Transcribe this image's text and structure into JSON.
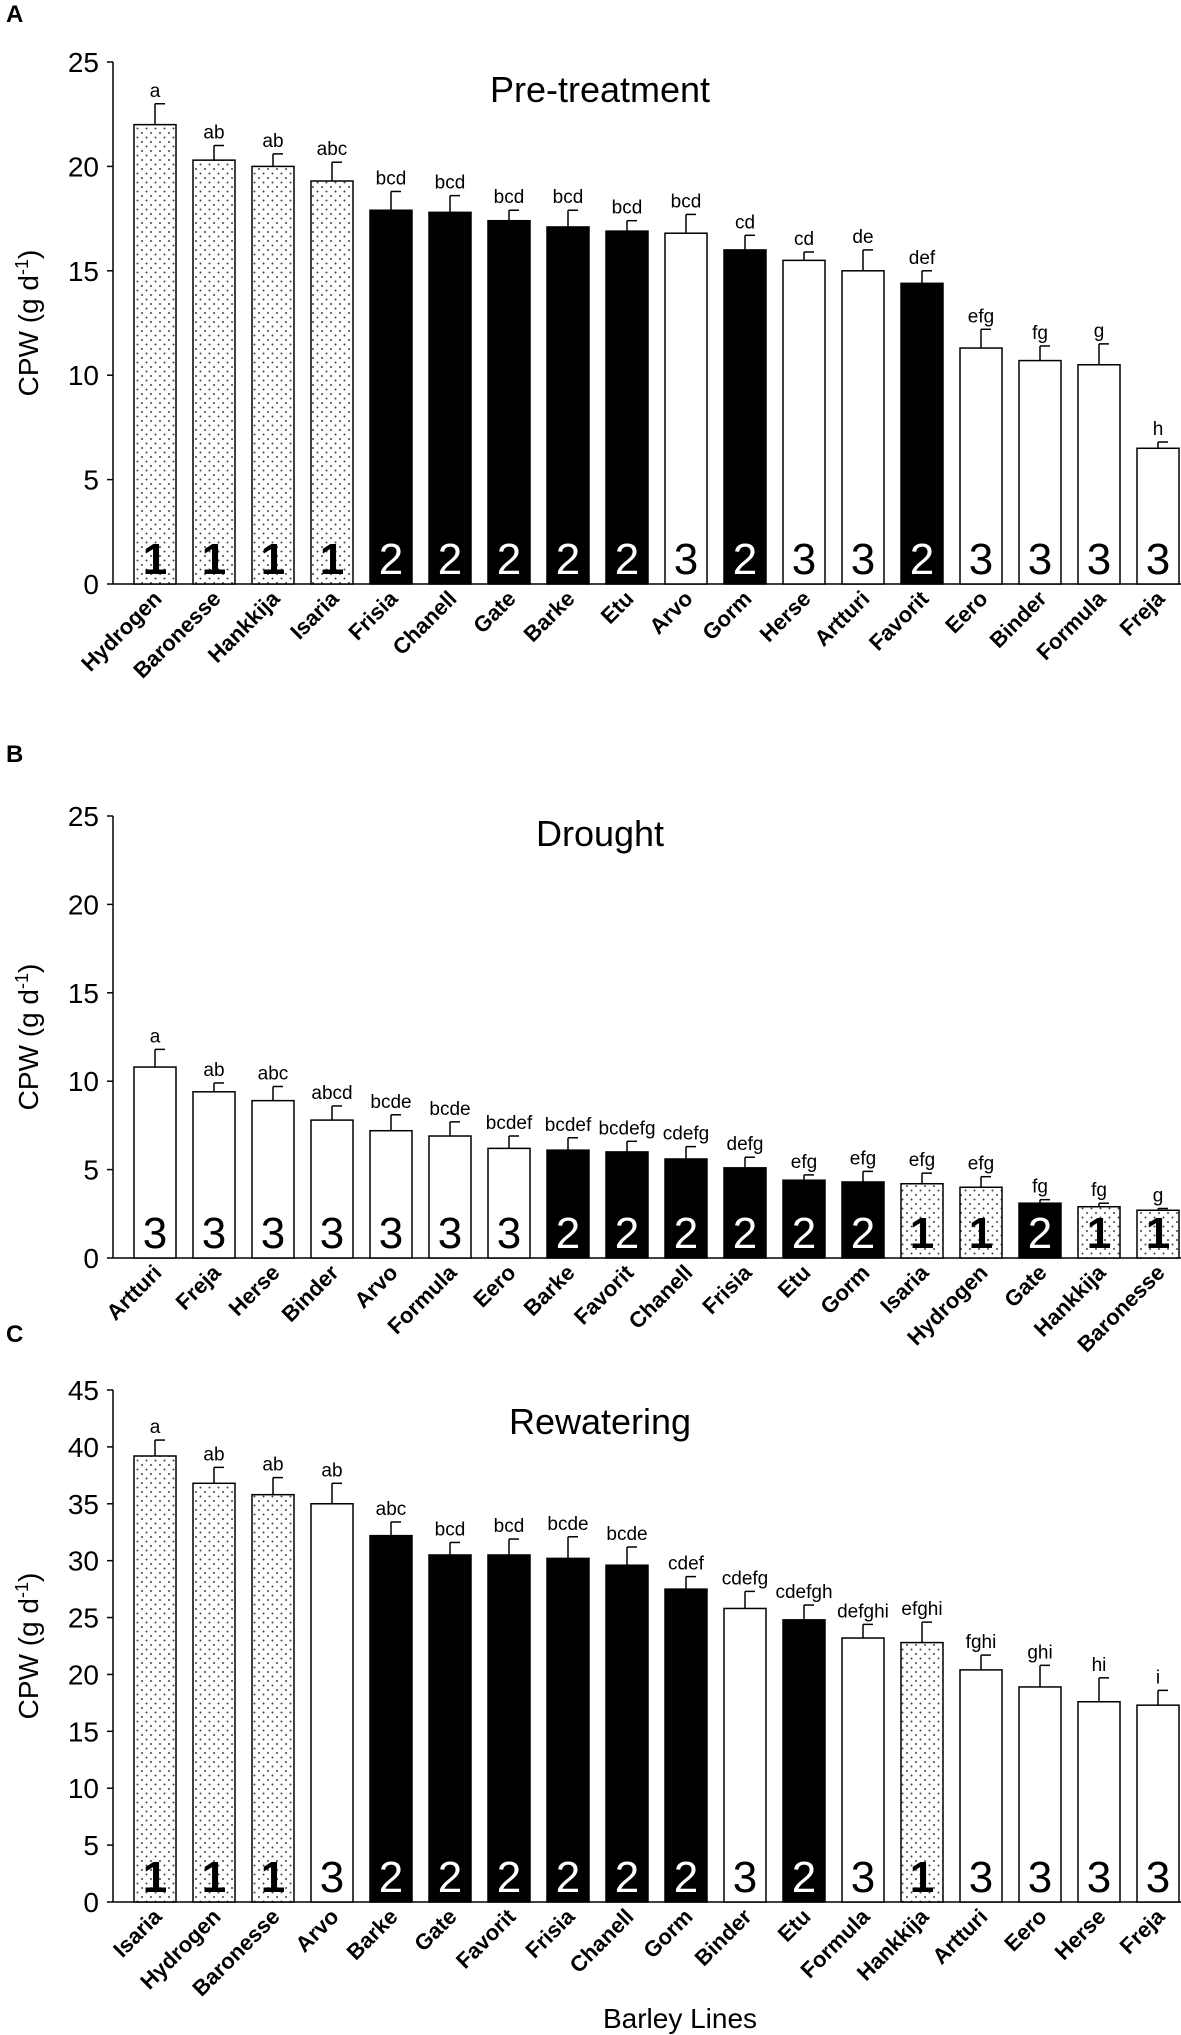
{
  "x_axis_title": "Barley Lines",
  "legend_colors": {
    "1": "dotted",
    "2": "#000000",
    "3": "#ffffff"
  },
  "chart_data": [
    {
      "panel": "A",
      "type": "bar",
      "title": "Pre-treatment",
      "ylabel": "CPW (g d",
      "ylabel_sup": "-1",
      "ylabel_end": ")",
      "ylim": [
        0,
        25
      ],
      "yticks": [
        0,
        5,
        10,
        15,
        20,
        25
      ],
      "categories": [
        "Hydrogen",
        "Baronesse",
        "Hankkija",
        "Isaria",
        "Frisia",
        "Chanell",
        "Gate",
        "Barke",
        "Etu",
        "Arvo",
        "Gorm",
        "Herse",
        "Artturi",
        "Favorit",
        "Eero",
        "Binder",
        "Formula",
        "Freja"
      ],
      "values": [
        22.0,
        20.3,
        20.0,
        19.3,
        17.9,
        17.8,
        17.4,
        17.1,
        16.9,
        16.8,
        16.0,
        15.5,
        15.0,
        14.4,
        11.3,
        10.7,
        10.5,
        6.5
      ],
      "errors": [
        1.0,
        0.7,
        0.6,
        0.9,
        0.9,
        0.8,
        0.5,
        0.8,
        0.5,
        0.9,
        0.7,
        0.4,
        1.0,
        0.6,
        0.9,
        0.7,
        1.0,
        0.3
      ],
      "groups": [
        "1",
        "1",
        "1",
        "1",
        "2",
        "2",
        "2",
        "2",
        "2",
        "3",
        "2",
        "3",
        "3",
        "2",
        "3",
        "3",
        "3",
        "3"
      ],
      "letters": [
        "a",
        "ab",
        "ab",
        "abc",
        "bcd",
        "bcd",
        "bcd",
        "bcd",
        "bcd",
        "bcd",
        "cd",
        "cd",
        "de",
        "def",
        "efg",
        "fg",
        "g",
        "h"
      ]
    },
    {
      "panel": "B",
      "type": "bar",
      "title": "Drought",
      "ylabel": "CPW (g d",
      "ylabel_sup": "-1",
      "ylabel_end": ")",
      "ylim": [
        0,
        25
      ],
      "yticks": [
        0,
        5,
        10,
        15,
        20,
        25
      ],
      "categories": [
        "Artturi",
        "Freja",
        "Herse",
        "Binder",
        "Arvo",
        "Formula",
        "Eero",
        "Barke",
        "Favorit",
        "Chanell",
        "Frisia",
        "Etu",
        "Gorm",
        "Isaria",
        "Hydrogen",
        "Gate",
        "Hankkija",
        "Baronesse"
      ],
      "values": [
        10.8,
        9.4,
        8.9,
        7.8,
        7.2,
        6.9,
        6.2,
        6.1,
        6.0,
        5.6,
        5.1,
        4.4,
        4.3,
        4.2,
        4.0,
        3.1,
        2.9,
        2.7
      ],
      "errors": [
        1.0,
        0.5,
        0.8,
        0.8,
        0.9,
        0.8,
        0.7,
        0.7,
        0.6,
        0.7,
        0.6,
        0.3,
        0.6,
        0.6,
        0.6,
        0.2,
        0.2,
        0.1
      ],
      "groups": [
        "3",
        "3",
        "3",
        "3",
        "3",
        "3",
        "3",
        "2",
        "2",
        "2",
        "2",
        "2",
        "2",
        "1",
        "1",
        "2",
        "1",
        "1"
      ],
      "letters": [
        "a",
        "ab",
        "abc",
        "abcd",
        "bcde",
        "bcde",
        "bcdef",
        "bcdef",
        "bcdefg",
        "cdefg",
        "defg",
        "efg",
        "efg",
        "efg",
        "efg",
        "fg",
        "fg",
        "g"
      ]
    },
    {
      "panel": "C",
      "type": "bar",
      "title": "Rewatering",
      "ylabel": "CPW (g d",
      "ylabel_sup": "-1",
      "ylabel_end": ")",
      "ylim": [
        0,
        45
      ],
      "yticks": [
        0,
        5,
        10,
        15,
        20,
        25,
        30,
        35,
        40,
        45
      ],
      "categories": [
        "Isaria",
        "Hydrogen",
        "Baronesse",
        "Arvo",
        "Barke",
        "Gate",
        "Favorit",
        "Frisia",
        "Chanell",
        "Gorm",
        "Binder",
        "Etu",
        "Formula",
        "Hankkija",
        "Artturi",
        "Eero",
        "Herse",
        "Freja"
      ],
      "values": [
        39.2,
        36.8,
        35.8,
        35.0,
        32.2,
        30.5,
        30.5,
        30.2,
        29.6,
        27.5,
        25.8,
        24.8,
        23.2,
        22.8,
        20.4,
        18.9,
        17.6,
        17.3
      ],
      "errors": [
        1.4,
        1.4,
        1.5,
        1.8,
        1.2,
        1.1,
        1.4,
        1.9,
        1.6,
        1.1,
        1.5,
        1.3,
        1.2,
        1.8,
        1.3,
        1.9,
        2.1,
        1.3
      ],
      "groups": [
        "1",
        "1",
        "1",
        "3",
        "2",
        "2",
        "2",
        "2",
        "2",
        "2",
        "3",
        "2",
        "3",
        "1",
        "3",
        "3",
        "3",
        "3"
      ],
      "letters": [
        "a",
        "ab",
        "ab",
        "ab",
        "abc",
        "bcd",
        "bcd",
        "bcde",
        "bcde",
        "cdef",
        "cdefg",
        "cdefgh",
        "defghi",
        "efghi",
        "fghi",
        "ghi",
        "hi",
        "i"
      ]
    }
  ]
}
